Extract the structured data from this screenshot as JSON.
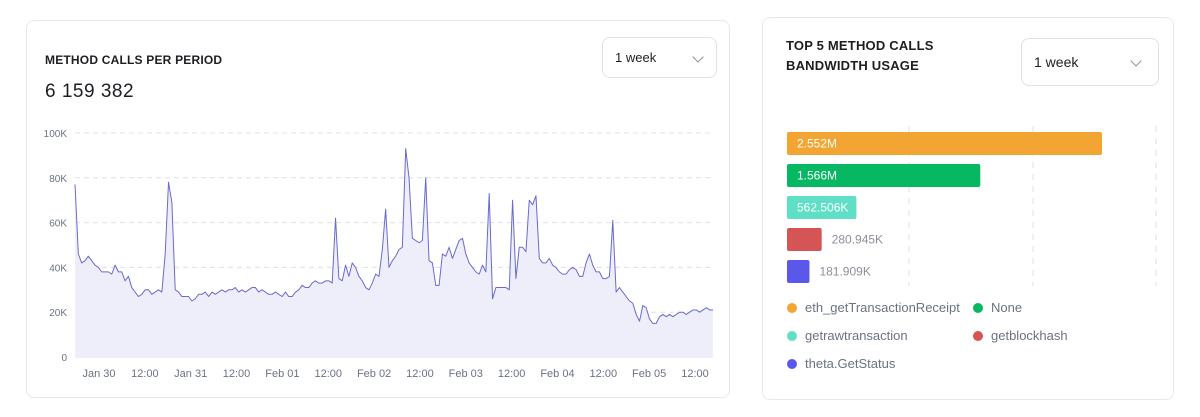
{
  "left_card": {
    "title": "METHOD CALLS PER PERIOD",
    "total": "6 159 382",
    "period_select": {
      "value": "1 week"
    }
  },
  "right_card": {
    "title_line1": "TOP 5 METHOD CALLS",
    "title_line2": "BANDWIDTH USAGE",
    "period_select": {
      "value": "1 week"
    }
  },
  "chart_data": [
    {
      "type": "area",
      "title": "METHOD CALLS PER PERIOD",
      "ylim": [
        0,
        100000
      ],
      "y_ticks": [
        0,
        20000,
        40000,
        60000,
        80000,
        100000
      ],
      "y_tick_labels": [
        "0",
        "20K",
        "40K",
        "60K",
        "80K",
        "100K"
      ],
      "x_tick_labels": [
        "Jan 30",
        "12:00",
        "Jan 31",
        "12:00",
        "Feb 01",
        "12:00",
        "Feb 02",
        "12:00",
        "Feb 03",
        "12:00",
        "Feb 04",
        "12:00",
        "Feb 05",
        "12:00"
      ],
      "grid": "horizontal dashed",
      "color": "#6a6acd",
      "fill": "#eeeefb",
      "values": [
        77000,
        46000,
        42000,
        43000,
        45000,
        43000,
        41000,
        40000,
        38000,
        38000,
        38000,
        37000,
        41000,
        38000,
        38000,
        34000,
        36000,
        31000,
        29000,
        27000,
        28000,
        30000,
        30000,
        28000,
        29000,
        30000,
        29000,
        46000,
        78000,
        69000,
        30000,
        29000,
        27000,
        27000,
        27000,
        25000,
        26000,
        28000,
        28000,
        29000,
        27000,
        29000,
        28000,
        29000,
        30000,
        29000,
        30000,
        30000,
        31000,
        29000,
        30000,
        29000,
        30000,
        31000,
        31000,
        29000,
        30000,
        29000,
        28000,
        28000,
        29000,
        28000,
        27000,
        29000,
        27000,
        27000,
        29000,
        30000,
        32000,
        31000,
        31000,
        33000,
        34000,
        33000,
        33000,
        34000,
        34000,
        33000,
        62000,
        35000,
        34000,
        41000,
        36000,
        42000,
        40000,
        36000,
        34000,
        31000,
        30000,
        33000,
        37000,
        36000,
        48000,
        66000,
        40000,
        43000,
        45000,
        48000,
        49000,
        93000,
        80000,
        53000,
        52000,
        51000,
        52000,
        80000,
        43000,
        42000,
        32000,
        32000,
        46000,
        45000,
        49000,
        44000,
        48000,
        52000,
        53000,
        46000,
        42000,
        40000,
        38000,
        37000,
        41000,
        38000,
        73000,
        26000,
        31000,
        31000,
        31000,
        31000,
        30000,
        70000,
        35000,
        49000,
        49000,
        47000,
        70000,
        68000,
        72000,
        44000,
        42000,
        42000,
        44000,
        41000,
        40000,
        38000,
        37000,
        37000,
        39000,
        40000,
        39000,
        36000,
        36000,
        42000,
        46000,
        41000,
        38000,
        38000,
        35000,
        35000,
        36000,
        61000,
        29000,
        31000,
        29000,
        27000,
        25000,
        24000,
        19000,
        16000,
        23000,
        22000,
        17000,
        15000,
        15000,
        18000,
        19000,
        18000,
        19000,
        18000,
        19000,
        20000,
        20000,
        19000,
        20000,
        21000,
        21000,
        20000,
        21000,
        22000,
        21000,
        21000
      ]
    },
    {
      "type": "bar",
      "orientation": "horizontal",
      "title": "TOP 5 METHOD CALLS BANDWIDTH USAGE",
      "grid": "vertical dashed",
      "legend": "bottom",
      "categories": [
        "eth_getTransactionReceipt",
        "None",
        "getrawtransaction",
        "getblockhash",
        "theta.GetStatus"
      ],
      "values": [
        2552000,
        1566000,
        562506,
        280945,
        181909
      ],
      "labels": [
        "2.552M",
        "1.566M",
        "562.506K",
        "280.945K",
        "181.909K"
      ],
      "colors": [
        "#f2a532",
        "#07b863",
        "#5fe0c6",
        "#d55456",
        "#5a57ea"
      ]
    }
  ]
}
